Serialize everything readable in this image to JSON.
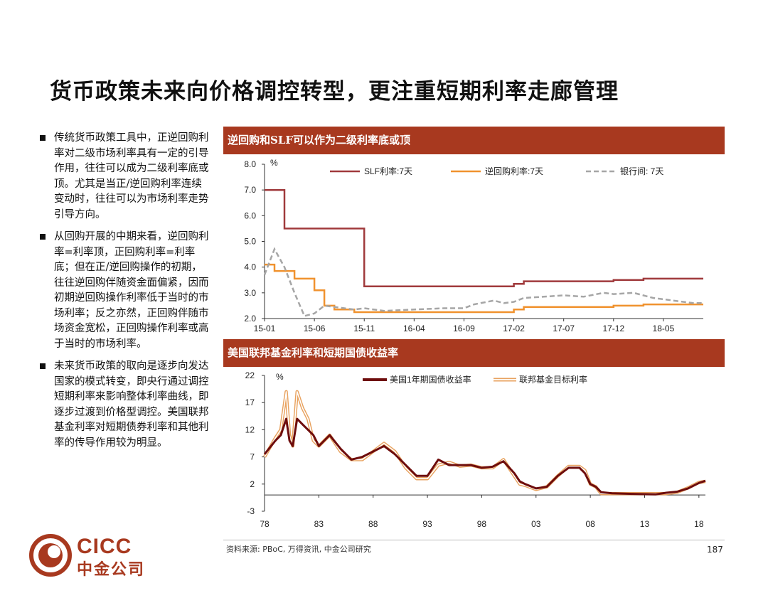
{
  "title": "货币政策未来向价格调控转型，更注重短期利率走廊管理",
  "bullets": [
    "传统货币政策工具中，正逆回购利率对二级市场利率具有一定的引导作用，往往可以成为二级利率底或顶。尤其是当正/逆回购利率连续变动时，往往可以为市场利率走势引导方向。",
    "从回购开展的中期来看，逆回购利率=利率顶，正回购利率=利率底；但在正/逆回购操作的初期，往往逆回购伴随资金面偏紧，因而初期逆回购操作利率低于当时的市场利率；反之亦然，正回购伴随市场资金宽松，正回购操作利率或高于当时的市场利率。",
    "未来货币政策的取向是逐步向发达国家的模式转变，即央行通过调控短期利率来影响整体利率曲线，即逐步过渡到价格型调控。美国联邦基金利率对短期债券利率和其他利率的传导作用较为明显。"
  ],
  "footer": {
    "source": "资料来源: PBoC, 万得资讯, 中金公司研究",
    "page_number": "187"
  },
  "logo": {
    "latin": "CICC",
    "chinese": "中金公司"
  },
  "colors": {
    "accent": "#a8391f",
    "slf": "#a03a3c",
    "repo": "#f0922e",
    "interbank": "#a6a6a6",
    "treasury": "#6e0d0d",
    "fedfunds_outline": "#e8a25f"
  },
  "chart_data": [
    {
      "type": "line",
      "header": "逆回购和SLF可以作为二级利率底或顶",
      "unit_label": "%",
      "ylim": [
        2.0,
        8.0
      ],
      "yticks": [
        2.0,
        3.0,
        4.0,
        5.0,
        6.0,
        7.0,
        8.0
      ],
      "ytick_labels": [
        "2.0",
        "3.0",
        "4.0",
        "5.0",
        "6.0",
        "7.0",
        "8.0"
      ],
      "xlim": [
        "2015-01",
        "2018-09"
      ],
      "xticks": [
        "15-01",
        "15-06",
        "15-11",
        "16-04",
        "16-09",
        "17-02",
        "17-07",
        "17-12",
        "18-05"
      ],
      "legend_placement": "top",
      "grid": false,
      "series": [
        {
          "name": "SLF利率:7天",
          "style": "solid",
          "x": [
            "2015-01",
            "2015-03",
            "2015-03",
            "2015-11",
            "2015-11",
            "2017-02",
            "2017-02",
            "2017-03",
            "2017-03",
            "2017-12",
            "2017-12",
            "2018-03",
            "2018-03",
            "2018-09"
          ],
          "values": [
            7.0,
            7.0,
            5.5,
            5.5,
            3.25,
            3.25,
            3.35,
            3.35,
            3.45,
            3.45,
            3.5,
            3.5,
            3.55,
            3.55
          ]
        },
        {
          "name": "逆回购利率:7天",
          "style": "solid",
          "x": [
            "2015-01",
            "2015-02",
            "2015-02",
            "2015-04",
            "2015-04",
            "2015-06",
            "2015-06",
            "2015-07",
            "2015-07",
            "2015-08",
            "2015-08",
            "2015-10",
            "2015-10",
            "2017-02",
            "2017-02",
            "2017-03",
            "2017-03",
            "2017-12",
            "2017-12",
            "2018-03",
            "2018-03",
            "2018-09"
          ],
          "values": [
            4.1,
            4.1,
            3.85,
            3.85,
            3.55,
            3.55,
            3.1,
            3.1,
            2.5,
            2.5,
            2.35,
            2.35,
            2.25,
            2.25,
            2.35,
            2.35,
            2.45,
            2.45,
            2.5,
            2.5,
            2.55,
            2.55
          ]
        },
        {
          "name": "银行间: 7天",
          "style": "dashed",
          "x": [
            "2015-01",
            "2015-02",
            "2015-03",
            "2015-04",
            "2015-05",
            "2015-06",
            "2015-07",
            "2015-08",
            "2015-09",
            "2015-10",
            "2015-11",
            "2016-01",
            "2016-04",
            "2016-07",
            "2016-09",
            "2016-10",
            "2016-12",
            "2017-01",
            "2017-02",
            "2017-03",
            "2017-05",
            "2017-07",
            "2017-09",
            "2017-11",
            "2017-12",
            "2018-02",
            "2018-04",
            "2018-06",
            "2018-08",
            "2018-09"
          ],
          "values": [
            3.7,
            4.7,
            4.0,
            3.0,
            2.1,
            2.2,
            2.5,
            2.45,
            2.4,
            2.35,
            2.4,
            2.3,
            2.35,
            2.4,
            2.4,
            2.55,
            2.7,
            2.6,
            2.65,
            2.8,
            2.85,
            2.9,
            2.85,
            3.0,
            2.95,
            3.0,
            2.8,
            2.7,
            2.6,
            2.6
          ]
        }
      ]
    },
    {
      "type": "line",
      "header": "美国联邦基金利率和短期国债收益率",
      "unit_label": "%",
      "ylim": [
        -3,
        22
      ],
      "yticks": [
        -3,
        2,
        7,
        12,
        17,
        22
      ],
      "ytick_labels": [
        "-3",
        "2",
        "7",
        "12",
        "17",
        "22"
      ],
      "xlim": [
        1978,
        2018.6
      ],
      "xticks": [
        "78",
        "83",
        "88",
        "93",
        "98",
        "03",
        "08",
        "13",
        "18"
      ],
      "legend_placement": "top",
      "grid": false,
      "series": [
        {
          "name": "美国1年期国债收益率",
          "style": "thick-solid",
          "x": [
            1978,
            1979,
            1979.5,
            1980,
            1980.3,
            1980.6,
            1981,
            1981.5,
            1982,
            1982.5,
            1983,
            1984,
            1985,
            1986,
            1987,
            1988,
            1989,
            1990,
            1991,
            1992,
            1993,
            1994,
            1995,
            1996,
            1997,
            1998,
            1999,
            2000,
            2001,
            2001.5,
            2002,
            2003,
            2004,
            2005,
            2006,
            2007,
            2007.5,
            2008,
            2008.5,
            2009,
            2010,
            2012,
            2014,
            2015,
            2016,
            2017,
            2018,
            2018.6
          ],
          "values": [
            7.5,
            10,
            11,
            14,
            10,
            9,
            14,
            13,
            12,
            11,
            9,
            11,
            8.5,
            6.5,
            7,
            8,
            9,
            7.5,
            5.5,
            3.5,
            3.5,
            6.5,
            5.5,
            5.5,
            5.5,
            5,
            5.2,
            6.2,
            4,
            2.5,
            2,
            1.2,
            1.5,
            3.5,
            5,
            5,
            4,
            2,
            1.5,
            0.5,
            0.3,
            0.2,
            0.1,
            0.4,
            0.6,
            1.2,
            2.2,
            2.6
          ]
        },
        {
          "name": "联邦基金目标利率",
          "style": "outlined",
          "x": [
            1978,
            1979,
            1979.5,
            1980,
            1980.3,
            1980.6,
            1981,
            1981.5,
            1982,
            1982.5,
            1983,
            1984,
            1985,
            1986,
            1987,
            1988,
            1989,
            1990,
            1991,
            1992,
            1993,
            1994,
            1995,
            1996,
            1997,
            1998,
            1999,
            2000,
            2001,
            2001.5,
            2002,
            2003,
            2004,
            2005,
            2006,
            2007,
            2007.5,
            2008,
            2008.5,
            2009,
            2010,
            2012,
            2014,
            2015,
            2016,
            2017,
            2018,
            2018.6
          ],
          "values": [
            7,
            10.5,
            12,
            19,
            11,
            9,
            19,
            16,
            14,
            10,
            9,
            11,
            8,
            6.5,
            6.5,
            8,
            9.5,
            8,
            5,
            3,
            3,
            5.5,
            6,
            5.3,
            5.5,
            5,
            5,
            6.5,
            3.5,
            2,
            1.75,
            1,
            1.5,
            3.5,
            5.25,
            5.25,
            4.5,
            2,
            1.5,
            0.25,
            0.25,
            0.25,
            0.25,
            0.25,
            0.5,
            1.3,
            2.3,
            2.5
          ]
        }
      ]
    }
  ]
}
